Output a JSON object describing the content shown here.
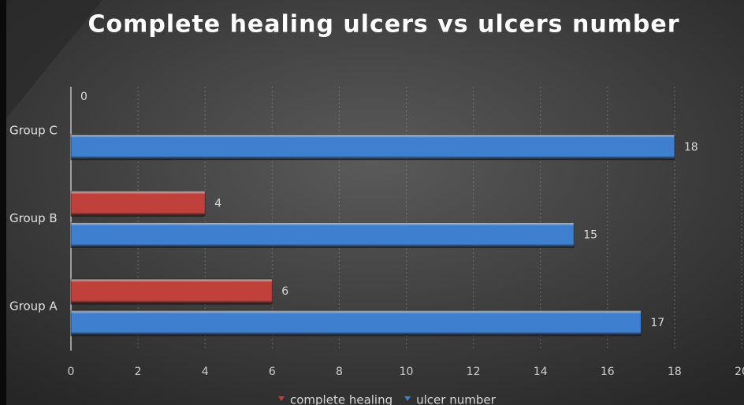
{
  "chart_data": {
    "type": "hbar",
    "title": "Complete healing ulcers vs ulcers number",
    "categories": [
      "Group A",
      "Group B",
      "Group C"
    ],
    "series": [
      {
        "name": "complete healing",
        "color": "#c0403c",
        "values": [
          6,
          4,
          0
        ]
      },
      {
        "name": "ulcer number",
        "color": "#3f7fd0",
        "values": [
          17,
          15,
          18
        ]
      }
    ],
    "xlim": [
      0,
      20
    ],
    "xticks": [
      0,
      2,
      4,
      6,
      8,
      10,
      12,
      14,
      16,
      18,
      20
    ],
    "grid": true,
    "legend": "bottom"
  }
}
